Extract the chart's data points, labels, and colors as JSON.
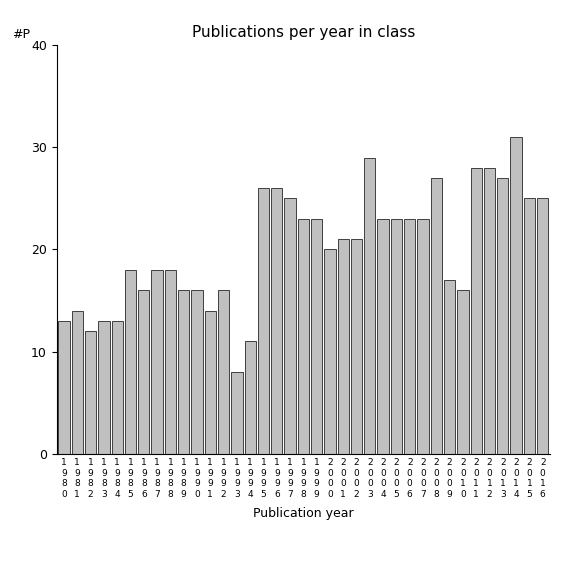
{
  "title": "Publications per year in class",
  "xlabel": "Publication year",
  "ylabel": "#P",
  "years": [
    1980,
    1981,
    1982,
    1983,
    1984,
    1985,
    1986,
    1987,
    1988,
    1989,
    1990,
    1991,
    1992,
    1993,
    1994,
    1995,
    1996,
    1997,
    1998,
    1999,
    2000,
    2001,
    2002,
    2003,
    2004,
    2005,
    2006,
    2007,
    2008,
    2009,
    2010,
    2011,
    2012,
    2013,
    2014,
    2015,
    2016
  ],
  "values": [
    13,
    14,
    12,
    13,
    13,
    18,
    16,
    18,
    18,
    16,
    16,
    14,
    16,
    8,
    11,
    26,
    26,
    25,
    23,
    23,
    20,
    21,
    21,
    29,
    23,
    23,
    23,
    23,
    27,
    17,
    16,
    28,
    28,
    27,
    31,
    25,
    25
  ],
  "bar_color": "#c0c0c0",
  "bar_edge_color": "#404040",
  "ylim": [
    0,
    40
  ],
  "yticks": [
    0,
    10,
    20,
    30,
    40
  ],
  "background_color": "#ffffff",
  "fig_size": [
    5.67,
    5.67
  ],
  "dpi": 100
}
